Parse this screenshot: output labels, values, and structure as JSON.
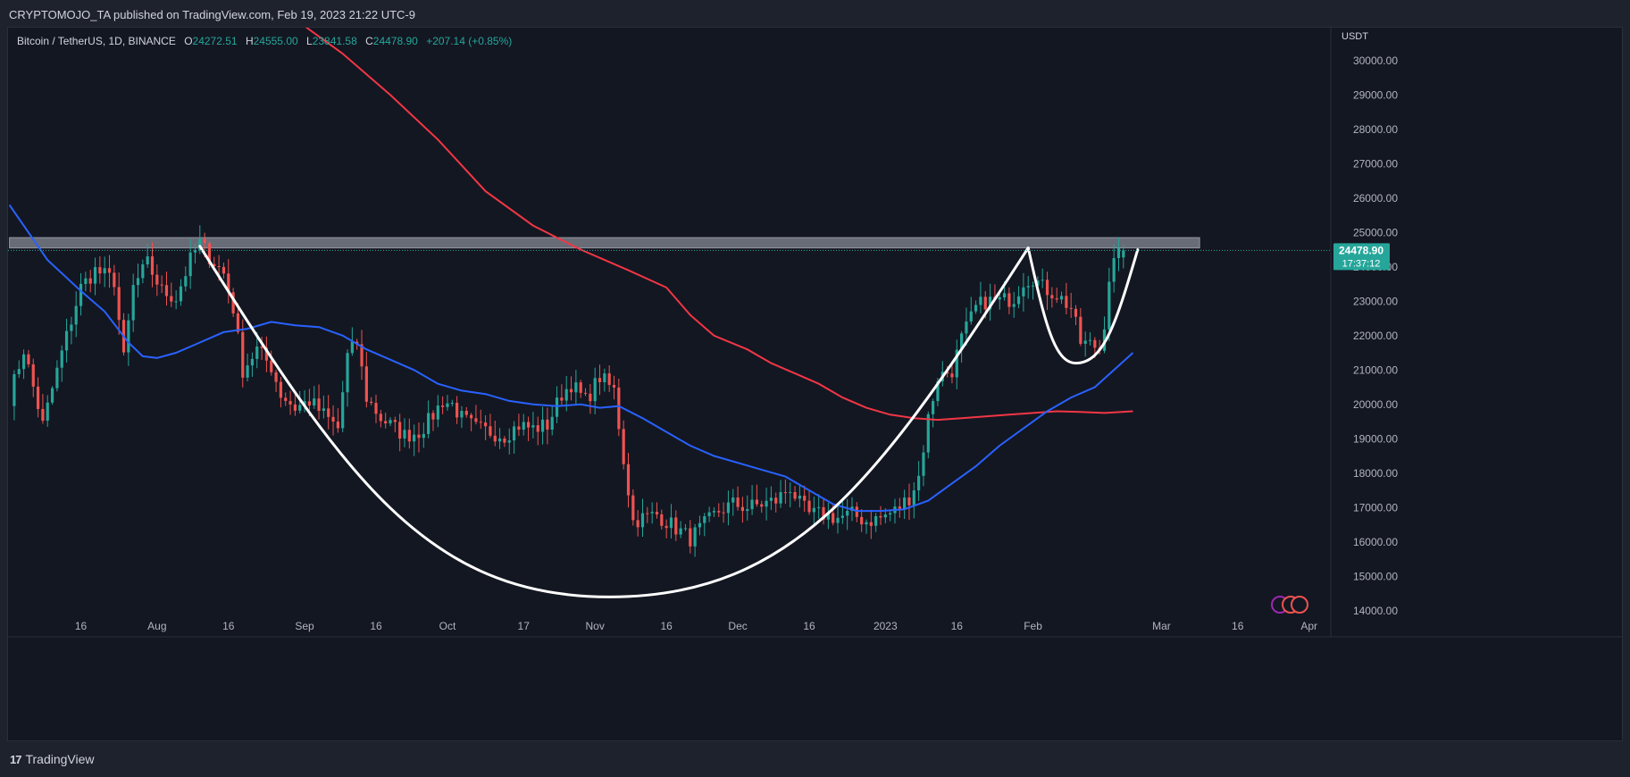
{
  "header": {
    "publisher_line": "CRYPTOMOJO_TA published on TradingView.com, Feb 19, 2023 21:22 UTC-9"
  },
  "legend": {
    "symbol": "Bitcoin / TetherUS, 1D, BINANCE",
    "open_label": "O",
    "open": "24272.51",
    "high_label": "H",
    "high": "24555.00",
    "low_label": "L",
    "low": "23841.58",
    "close_label": "C",
    "close": "24478.90",
    "change": "+207.14 (+0.85%)"
  },
  "footer": {
    "brand": "TradingView",
    "logo_mark": "17"
  },
  "colors": {
    "bg": "#131722",
    "up": "#26a69a",
    "down": "#ef5350",
    "ma_fast": "#2962ff",
    "ma_slow": "#f23645",
    "pattern": "#ffffff",
    "zone": "#787b86"
  },
  "chart_data": {
    "type": "candlestick",
    "title": "Bitcoin / TetherUS, 1D, BINANCE",
    "currency": "USDT",
    "ylim": [
      13500,
      30800
    ],
    "y_ticks": [
      14000,
      15000,
      16000,
      17000,
      18000,
      19000,
      20000,
      21000,
      22000,
      23000,
      24000,
      25000,
      26000,
      27000,
      28000,
      29000,
      30000
    ],
    "y_tick_labels": [
      "14000.00",
      "15000.00",
      "16000.00",
      "17000.00",
      "18000.00",
      "19000.00",
      "20000.00",
      "21000.00",
      "22000.00",
      "23000.00",
      "24000.00",
      "25000.00",
      "26000.00",
      "27000.00",
      "28000.00",
      "29000.00",
      "30000.00"
    ],
    "x_ticks": [
      {
        "day": 15,
        "label": "16"
      },
      {
        "day": 31,
        "label": "Aug"
      },
      {
        "day": 46,
        "label": "16"
      },
      {
        "day": 62,
        "label": "Sep"
      },
      {
        "day": 77,
        "label": "16"
      },
      {
        "day": 92,
        "label": "Oct"
      },
      {
        "day": 108,
        "label": "17"
      },
      {
        "day": 123,
        "label": "Nov"
      },
      {
        "day": 138,
        "label": "16"
      },
      {
        "day": 153,
        "label": "Dec"
      },
      {
        "day": 168,
        "label": "16"
      },
      {
        "day": 184,
        "label": "2023"
      },
      {
        "day": 199,
        "label": "16"
      },
      {
        "day": 215,
        "label": "Feb"
      },
      {
        "day": 242,
        "label": "Mar"
      },
      {
        "day": 258,
        "label": "16"
      },
      {
        "day": 273,
        "label": "Apr"
      }
    ],
    "price_label": {
      "price": "24478.90",
      "countdown": "17:37:12",
      "value": 24478.9
    },
    "resistance_zone": {
      "from_day": 0,
      "to_day": 250,
      "low": 24550,
      "high": 24850
    },
    "candle_anchors": [
      [
        0,
        20200
      ],
      [
        3,
        21600
      ],
      [
        7,
        19400
      ],
      [
        11,
        21500
      ],
      [
        15,
        23400
      ],
      [
        18,
        23900
      ],
      [
        22,
        23600
      ],
      [
        24,
        21300
      ],
      [
        26,
        23400
      ],
      [
        29,
        24100
      ],
      [
        32,
        23300
      ],
      [
        35,
        23100
      ],
      [
        38,
        24200
      ],
      [
        40,
        24700
      ],
      [
        42,
        24300
      ],
      [
        45,
        23800
      ],
      [
        47,
        22800
      ],
      [
        49,
        21000
      ],
      [
        52,
        21600
      ],
      [
        55,
        21100
      ],
      [
        57,
        20300
      ],
      [
        60,
        19900
      ],
      [
        63,
        20100
      ],
      [
        66,
        19700
      ],
      [
        69,
        19300
      ],
      [
        71,
        21400
      ],
      [
        73,
        21800
      ],
      [
        75,
        20200
      ],
      [
        78,
        19600
      ],
      [
        80,
        19400
      ],
      [
        83,
        19100
      ],
      [
        86,
        19200
      ],
      [
        88,
        19500
      ],
      [
        91,
        20100
      ],
      [
        93,
        20000
      ],
      [
        95,
        19600
      ],
      [
        98,
        19300
      ],
      [
        101,
        19200
      ],
      [
        104,
        19100
      ],
      [
        107,
        19400
      ],
      [
        110,
        19300
      ],
      [
        113,
        19400
      ],
      [
        116,
        20300
      ],
      [
        118,
        20600
      ],
      [
        121,
        20100
      ],
      [
        124,
        20800
      ],
      [
        127,
        20400
      ],
      [
        129,
        18400
      ],
      [
        131,
        16600
      ],
      [
        133,
        16700
      ],
      [
        136,
        16800
      ],
      [
        139,
        16500
      ],
      [
        141,
        16300
      ],
      [
        143,
        16100
      ],
      [
        146,
        16500
      ],
      [
        149,
        16900
      ],
      [
        152,
        17100
      ],
      [
        155,
        17000
      ],
      [
        158,
        17100
      ],
      [
        161,
        17200
      ],
      [
        164,
        17600
      ],
      [
        166,
        17100
      ],
      [
        168,
        16800
      ],
      [
        171,
        16800
      ],
      [
        174,
        16700
      ],
      [
        177,
        16800
      ],
      [
        180,
        16600
      ],
      [
        183,
        16700
      ],
      [
        186,
        16900
      ],
      [
        189,
        17300
      ],
      [
        191,
        17900
      ],
      [
        193,
        19600
      ],
      [
        195,
        20800
      ],
      [
        198,
        21000
      ],
      [
        200,
        21900
      ],
      [
        203,
        22800
      ],
      [
        205,
        23000
      ],
      [
        208,
        23000
      ],
      [
        211,
        23100
      ],
      [
        213,
        23600
      ],
      [
        215,
        23700
      ],
      [
        217,
        23400
      ],
      [
        220,
        23200
      ],
      [
        223,
        22800
      ],
      [
        225,
        21800
      ],
      [
        228,
        21700
      ],
      [
        229,
        21600
      ],
      [
        230,
        22400
      ],
      [
        231,
        23700
      ],
      [
        232,
        24100
      ],
      [
        233,
        24300
      ],
      [
        234,
        24479
      ]
    ],
    "ma_fast_points": [
      [
        0,
        25800
      ],
      [
        8,
        24200
      ],
      [
        15,
        23300
      ],
      [
        20,
        22700
      ],
      [
        25,
        21800
      ],
      [
        28,
        21400
      ],
      [
        31,
        21350
      ],
      [
        35,
        21500
      ],
      [
        40,
        21800
      ],
      [
        45,
        22100
      ],
      [
        50,
        22200
      ],
      [
        55,
        22400
      ],
      [
        60,
        22300
      ],
      [
        65,
        22250
      ],
      [
        70,
        22000
      ],
      [
        75,
        21600
      ],
      [
        80,
        21300
      ],
      [
        85,
        21000
      ],
      [
        90,
        20600
      ],
      [
        95,
        20400
      ],
      [
        100,
        20300
      ],
      [
        105,
        20100
      ],
      [
        110,
        20000
      ],
      [
        115,
        19950
      ],
      [
        120,
        20000
      ],
      [
        124,
        19900
      ],
      [
        128,
        19950
      ],
      [
        133,
        19600
      ],
      [
        138,
        19200
      ],
      [
        143,
        18800
      ],
      [
        148,
        18500
      ],
      [
        153,
        18300
      ],
      [
        158,
        18100
      ],
      [
        163,
        17900
      ],
      [
        168,
        17500
      ],
      [
        173,
        17100
      ],
      [
        178,
        16900
      ],
      [
        183,
        16900
      ],
      [
        188,
        16950
      ],
      [
        193,
        17200
      ],
      [
        198,
        17700
      ],
      [
        203,
        18200
      ],
      [
        208,
        18800
      ],
      [
        213,
        19300
      ],
      [
        218,
        19800
      ],
      [
        223,
        20200
      ],
      [
        228,
        20500
      ],
      [
        232,
        21000
      ],
      [
        236,
        21500
      ]
    ],
    "ma_slow_points": [
      [
        62,
        31000
      ],
      [
        70,
        30200
      ],
      [
        80,
        29000
      ],
      [
        90,
        27700
      ],
      [
        100,
        26200
      ],
      [
        110,
        25200
      ],
      [
        120,
        24500
      ],
      [
        130,
        23900
      ],
      [
        138,
        23400
      ],
      [
        143,
        22600
      ],
      [
        148,
        22000
      ],
      [
        155,
        21600
      ],
      [
        160,
        21200
      ],
      [
        165,
        20900
      ],
      [
        170,
        20600
      ],
      [
        175,
        20200
      ],
      [
        180,
        19900
      ],
      [
        185,
        19700
      ],
      [
        190,
        19600
      ],
      [
        195,
        19550
      ],
      [
        200,
        19600
      ],
      [
        205,
        19650
      ],
      [
        210,
        19700
      ],
      [
        215,
        19750
      ],
      [
        220,
        19800
      ],
      [
        225,
        19780
      ],
      [
        230,
        19750
      ],
      [
        236,
        19800
      ]
    ],
    "cup_curve": {
      "start": [
        40,
        24600
      ],
      "bottom": [
        126,
        14400
      ],
      "end": [
        214,
        24550
      ]
    },
    "handle_curve": {
      "start": [
        214,
        24550
      ],
      "bottom": [
        224,
        21200
      ],
      "end": [
        237,
        24500
      ]
    }
  }
}
